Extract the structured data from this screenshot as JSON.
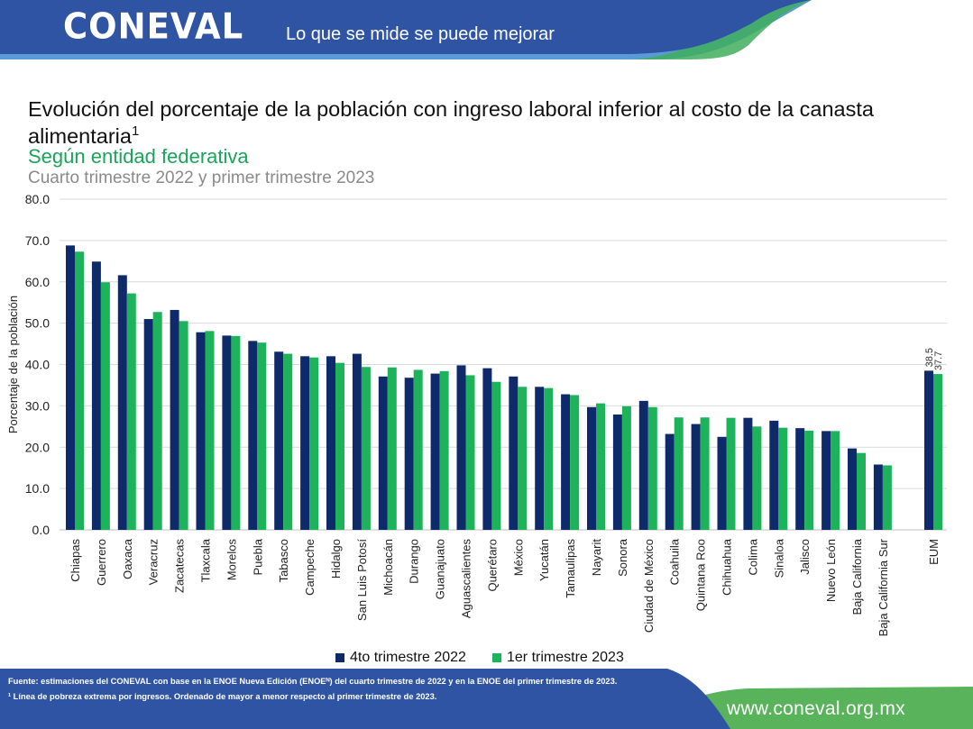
{
  "header": {
    "logo": "CONEVAL",
    "slogan": "Lo que se mide se puede mejorar"
  },
  "title": {
    "main": "Evolución del porcentaje de la población con ingreso laboral inferior al costo de la canasta alimentaria",
    "sup": "1",
    "subtitle": "Según entidad federativa",
    "subtitle2": "Cuarto trimestre 2022 y primer trimestre 2023"
  },
  "colors": {
    "series_2022": "#0f2a6b",
    "series_2023": "#1db35a",
    "header_blue": "#2f54a4",
    "header_light_blue": "#5b9bd5",
    "header_green": "#4caf50",
    "footer_blue": "#2f54a4",
    "footer_green": "#58b35a"
  },
  "chart_data": {
    "type": "bar",
    "ylabel": "Porcentaje de la población",
    "ylim": [
      0,
      80
    ],
    "yticks": [
      "0.0",
      "10.0",
      "20.0",
      "30.0",
      "40.0",
      "50.0",
      "60.0",
      "70.0",
      "80.0"
    ],
    "grid": true,
    "legend_position": "bottom",
    "categories": [
      "Chiapas",
      "Guerrero",
      "Oaxaca",
      "Veracruz",
      "Zacatecas",
      "Tlaxcala",
      "Morelos",
      "Puebla",
      "Tabasco",
      "Campeche",
      "Hidalgo",
      "San Luis Potosí",
      "Michoacán",
      "Durango",
      "Guanajuato",
      "Aguascalientes",
      "Querétaro",
      "México",
      "Yucatán",
      "Tamaulipas",
      "Nayarit",
      "Sonora",
      "Ciudad de México",
      "Coahuila",
      "Quintana Roo",
      "Chihuahua",
      "Colima",
      "Sinaloa",
      "Jalisco",
      "Nuevo León",
      "Baja California",
      "Baja California Sur",
      "EUM"
    ],
    "series": [
      {
        "name": "4to trimestre 2022",
        "values": [
          68.8,
          64.9,
          61.6,
          51.0,
          53.2,
          47.8,
          47.0,
          45.7,
          43.1,
          42.0,
          42.0,
          42.6,
          37.1,
          36.8,
          37.8,
          39.8,
          39.1,
          37.1,
          34.6,
          32.8,
          29.7,
          27.9,
          31.2,
          23.2,
          25.6,
          22.5,
          27.1,
          26.4,
          24.6,
          23.9,
          19.7,
          15.8,
          38.5
        ]
      },
      {
        "name": "1er trimestre 2023",
        "values": [
          67.3,
          59.9,
          57.2,
          52.7,
          50.5,
          48.1,
          46.9,
          45.3,
          42.6,
          41.7,
          40.4,
          39.4,
          39.3,
          38.7,
          38.4,
          37.4,
          35.8,
          34.6,
          34.3,
          32.6,
          30.6,
          29.9,
          29.7,
          27.2,
          27.2,
          27.1,
          25.0,
          24.7,
          24.0,
          23.9,
          18.6,
          15.6,
          37.7
        ]
      }
    ],
    "data_labels": [
      {
        "category": "EUM",
        "series": "4to trimestre 2022",
        "text": "38.5"
      },
      {
        "category": "EUM",
        "series": "1er trimestre 2023",
        "text": "37.7"
      }
    ]
  },
  "legend": {
    "item1": "4to trimestre 2022",
    "item2": "1er trimestre 2023"
  },
  "footer": {
    "source": "Fuente: estimaciones del CONEVAL con base en la ENOE Nueva Edición (ENOEᴺ) del cuarto trimestre de 2022 y en la ENOE del primer trimestre de 2023.",
    "note": "¹ Línea de pobreza extrema por ingresos. Ordenado de mayor a menor respecto al primer trimestre de 2023.",
    "url": "www.coneval.org.mx"
  }
}
